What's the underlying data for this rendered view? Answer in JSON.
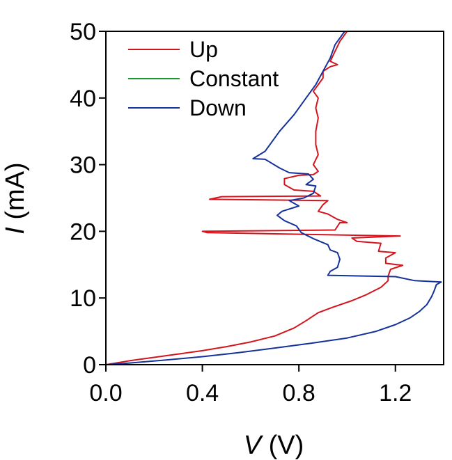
{
  "chart_data": {
    "type": "line",
    "xlabel_var": "V",
    "xlabel_unit": " (V)",
    "ylabel_var": "I",
    "ylabel_unit": " (mA)",
    "xlim": [
      0,
      1.4
    ],
    "ylim": [
      0,
      50
    ],
    "x_ticks": [
      0.0,
      0.4,
      0.8,
      1.2
    ],
    "x_tick_labels": [
      "0.0",
      "0.4",
      "0.8",
      "1.2"
    ],
    "y_ticks": [
      0,
      10,
      20,
      30,
      40,
      50
    ],
    "y_tick_labels": [
      "0",
      "10",
      "20",
      "30",
      "40",
      "50"
    ],
    "grid": false,
    "legend_position": "top-left",
    "series": [
      {
        "name": "Up",
        "color": "#d4141c",
        "points": [
          [
            0.0,
            0.0
          ],
          [
            0.1,
            0.6
          ],
          [
            0.2,
            1.1
          ],
          [
            0.3,
            1.6
          ],
          [
            0.4,
            2.1
          ],
          [
            0.5,
            2.7
          ],
          [
            0.6,
            3.4
          ],
          [
            0.7,
            4.3
          ],
          [
            0.78,
            5.5
          ],
          [
            0.83,
            6.6
          ],
          [
            0.88,
            7.8
          ],
          [
            0.94,
            8.6
          ],
          [
            1.02,
            9.6
          ],
          [
            1.08,
            10.5
          ],
          [
            1.14,
            11.6
          ],
          [
            1.17,
            12.6
          ],
          [
            1.17,
            13.3
          ],
          [
            1.18,
            14.3
          ],
          [
            1.23,
            14.9
          ],
          [
            1.16,
            15.2
          ],
          [
            1.16,
            16.0
          ],
          [
            1.2,
            16.8
          ],
          [
            1.13,
            17.0
          ],
          [
            1.14,
            18.2
          ],
          [
            1.04,
            18.5
          ],
          [
            1.02,
            19.0
          ],
          [
            1.22,
            19.3
          ],
          [
            0.42,
            19.8
          ],
          [
            0.4,
            20.0
          ],
          [
            0.95,
            20.2
          ],
          [
            0.97,
            21.3
          ],
          [
            1.0,
            21.3
          ],
          [
            0.96,
            21.8
          ],
          [
            0.92,
            22.6
          ],
          [
            0.88,
            23.0
          ],
          [
            0.9,
            24.0
          ],
          [
            0.92,
            24.6
          ],
          [
            0.43,
            24.8
          ],
          [
            0.48,
            25.2
          ],
          [
            0.89,
            25.3
          ],
          [
            0.86,
            26.0
          ],
          [
            0.78,
            26.2
          ],
          [
            0.74,
            27.0
          ],
          [
            0.74,
            27.9
          ],
          [
            0.8,
            28.4
          ],
          [
            0.86,
            28.5
          ],
          [
            0.88,
            29.0
          ],
          [
            0.86,
            30.0
          ],
          [
            0.88,
            31.5
          ],
          [
            0.87,
            33.0
          ],
          [
            0.87,
            35.0
          ],
          [
            0.88,
            37.0
          ],
          [
            0.87,
            38.5
          ],
          [
            0.88,
            40.0
          ],
          [
            0.86,
            41.0
          ],
          [
            0.88,
            42.0
          ],
          [
            0.9,
            43.0
          ],
          [
            0.9,
            44.0
          ],
          [
            0.93,
            44.7
          ],
          [
            0.96,
            45.0
          ],
          [
            0.93,
            45.5
          ],
          [
            0.95,
            47.0
          ],
          [
            0.97,
            48.5
          ],
          [
            0.99,
            49.5
          ],
          [
            1.0,
            50.0
          ]
        ]
      },
      {
        "name": "Constant",
        "color": "#1a9a2e",
        "points": [
          [
            0.97,
            50.0
          ],
          [
            1.0,
            50.0
          ],
          [
            1.06,
            50.0
          ]
        ]
      },
      {
        "name": "Down",
        "color": "#14329a",
        "points": [
          [
            0.99,
            50.0
          ],
          [
            0.95,
            48.0
          ],
          [
            0.93,
            46.0
          ],
          [
            0.9,
            44.0
          ],
          [
            0.87,
            42.0
          ],
          [
            0.83,
            40.0
          ],
          [
            0.78,
            37.5
          ],
          [
            0.72,
            35.0
          ],
          [
            0.66,
            32.0
          ],
          [
            0.61,
            30.9
          ],
          [
            0.66,
            30.8
          ],
          [
            0.72,
            29.5
          ],
          [
            0.76,
            28.8
          ],
          [
            0.84,
            28.6
          ],
          [
            0.86,
            27.8
          ],
          [
            0.83,
            27.0
          ],
          [
            0.87,
            26.8
          ],
          [
            0.86,
            25.7
          ],
          [
            0.82,
            25.0
          ],
          [
            0.76,
            24.6
          ],
          [
            0.8,
            23.8
          ],
          [
            0.73,
            23.0
          ],
          [
            0.71,
            22.4
          ],
          [
            0.74,
            21.6
          ],
          [
            0.79,
            20.8
          ],
          [
            0.81,
            19.8
          ],
          [
            0.86,
            18.9
          ],
          [
            0.92,
            18.0
          ],
          [
            0.93,
            17.2
          ],
          [
            0.96,
            16.8
          ],
          [
            0.97,
            15.8
          ],
          [
            0.96,
            14.6
          ],
          [
            0.93,
            14.0
          ],
          [
            0.92,
            13.4
          ],
          [
            1.2,
            13.2
          ],
          [
            1.28,
            12.6
          ],
          [
            1.39,
            12.4
          ],
          [
            1.37,
            12.0
          ],
          [
            1.36,
            11.0
          ],
          [
            1.35,
            10.2
          ],
          [
            1.33,
            9.0
          ],
          [
            1.3,
            8.0
          ],
          [
            1.26,
            7.0
          ],
          [
            1.2,
            6.0
          ],
          [
            1.12,
            5.0
          ],
          [
            1.0,
            4.0
          ],
          [
            0.85,
            3.2
          ],
          [
            0.7,
            2.5
          ],
          [
            0.55,
            1.8
          ],
          [
            0.4,
            1.2
          ],
          [
            0.25,
            0.7
          ],
          [
            0.1,
            0.25
          ],
          [
            0.0,
            0.0
          ]
        ]
      }
    ]
  }
}
